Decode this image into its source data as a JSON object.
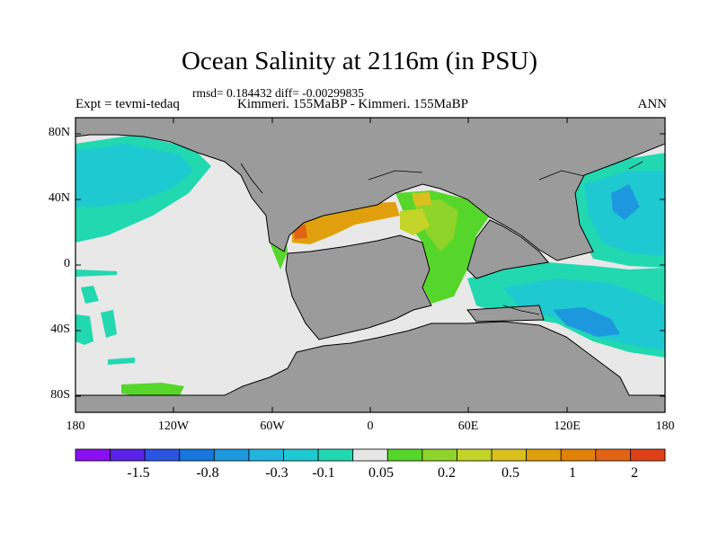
{
  "header": {
    "title": "Ocean Salinity at 2116m (in PSU)",
    "stats": "rmsd= 0.184432 diff= -0.00299835",
    "experiment": "Expt = tevmi-tedaq",
    "comparison": "Kimmeri. 155MaBP - Kimmeri. 155MaBP",
    "season": "ANN"
  },
  "map": {
    "lat_labels": [
      "80N",
      "40N",
      "0",
      "40S",
      "80S"
    ],
    "lon_labels": [
      "180",
      "120W",
      "60W",
      "0",
      "60E",
      "120E",
      "180"
    ],
    "land_color": "#9b9b9b",
    "neutral_ocean_color": "#e8e8e8"
  },
  "colorbar": {
    "colors": [
      "#8a0ff0",
      "#5a22e6",
      "#2a55e0",
      "#1877dc",
      "#1d98de",
      "#22b4dc",
      "#1fc9d2",
      "#22d8b0",
      "#e6e6e6",
      "#56d62a",
      "#8fd42a",
      "#c4d428",
      "#d9c01e",
      "#e0a00e",
      "#e0820a",
      "#e06414",
      "#e04018"
    ],
    "labels": [
      "-1.5",
      "-0.8",
      "-0.3",
      "-0.1",
      "0.05",
      "0.2",
      "0.5",
      "1",
      "2"
    ]
  }
}
